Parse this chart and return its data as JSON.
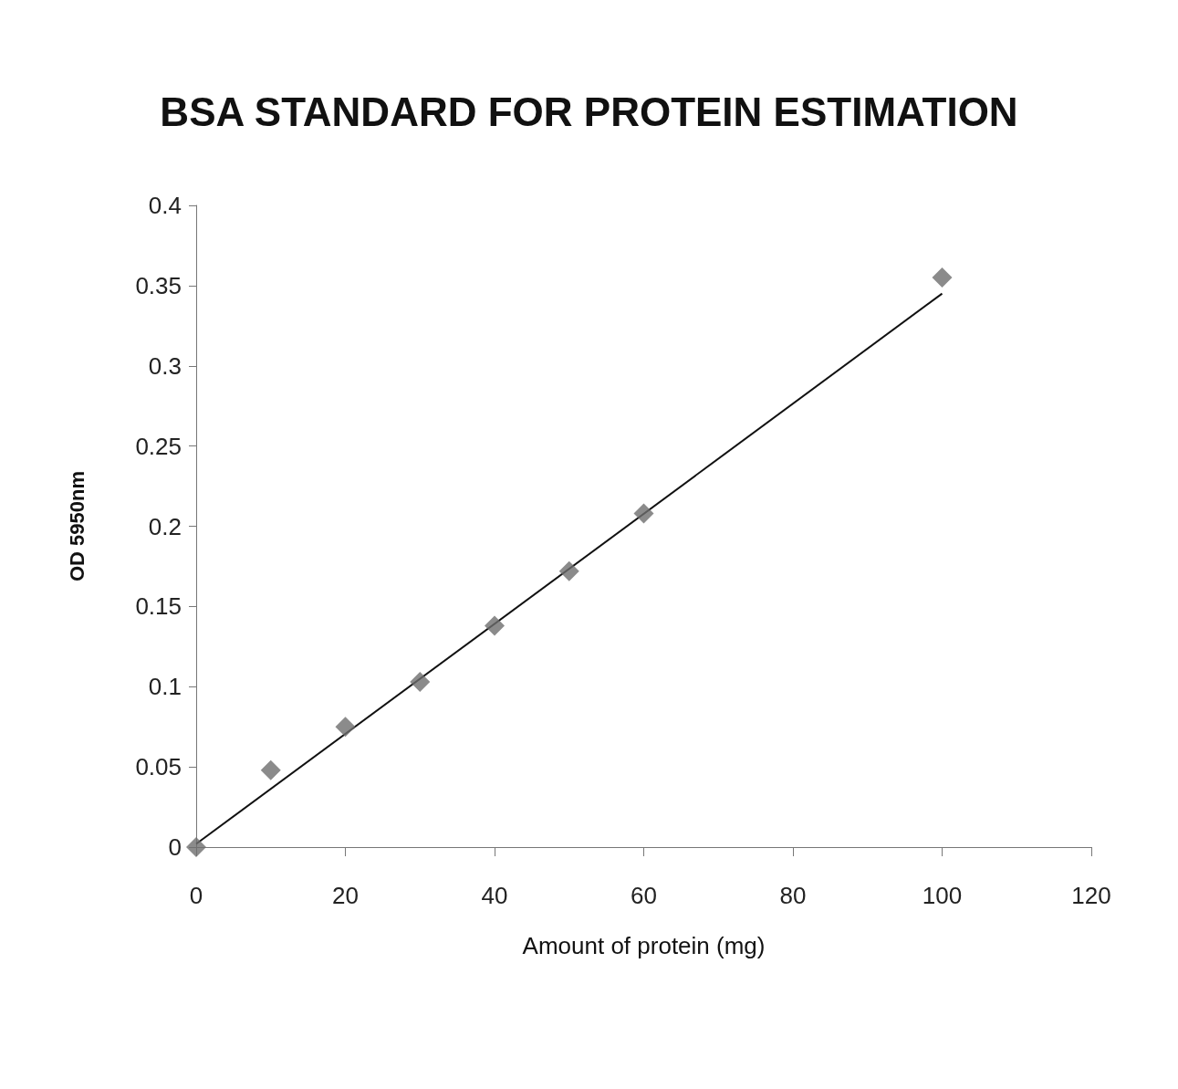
{
  "chart_data": {
    "type": "scatter",
    "title": "BSA STANDARD FOR PROTEIN ESTIMATION",
    "xlabel": "Amount of protein (mg)",
    "ylabel": "OD 5950nm",
    "x": [
      0,
      10,
      20,
      30,
      40,
      50,
      60,
      100
    ],
    "series": [
      {
        "color": "#6e6e6e",
        "values": [
          0,
          0.048,
          0.075,
          0.103,
          0.138,
          0.172,
          0.208,
          0.355
        ],
        "marker": "diamond"
      },
      {
        "type": "line",
        "color": "#111111",
        "x": [
          0,
          100
        ],
        "values": [
          0.002,
          0.345
        ],
        "marker": "none",
        "line_style": "solid"
      }
    ],
    "xlim": [
      0,
      120
    ],
    "xticks": [
      0,
      20,
      40,
      60,
      80,
      100,
      120
    ],
    "ylim": [
      0,
      0.4
    ],
    "yticks": [
      0,
      0.05,
      0.1,
      0.15,
      0.2,
      0.25,
      0.3,
      0.35,
      0.4
    ],
    "grid": false
  }
}
